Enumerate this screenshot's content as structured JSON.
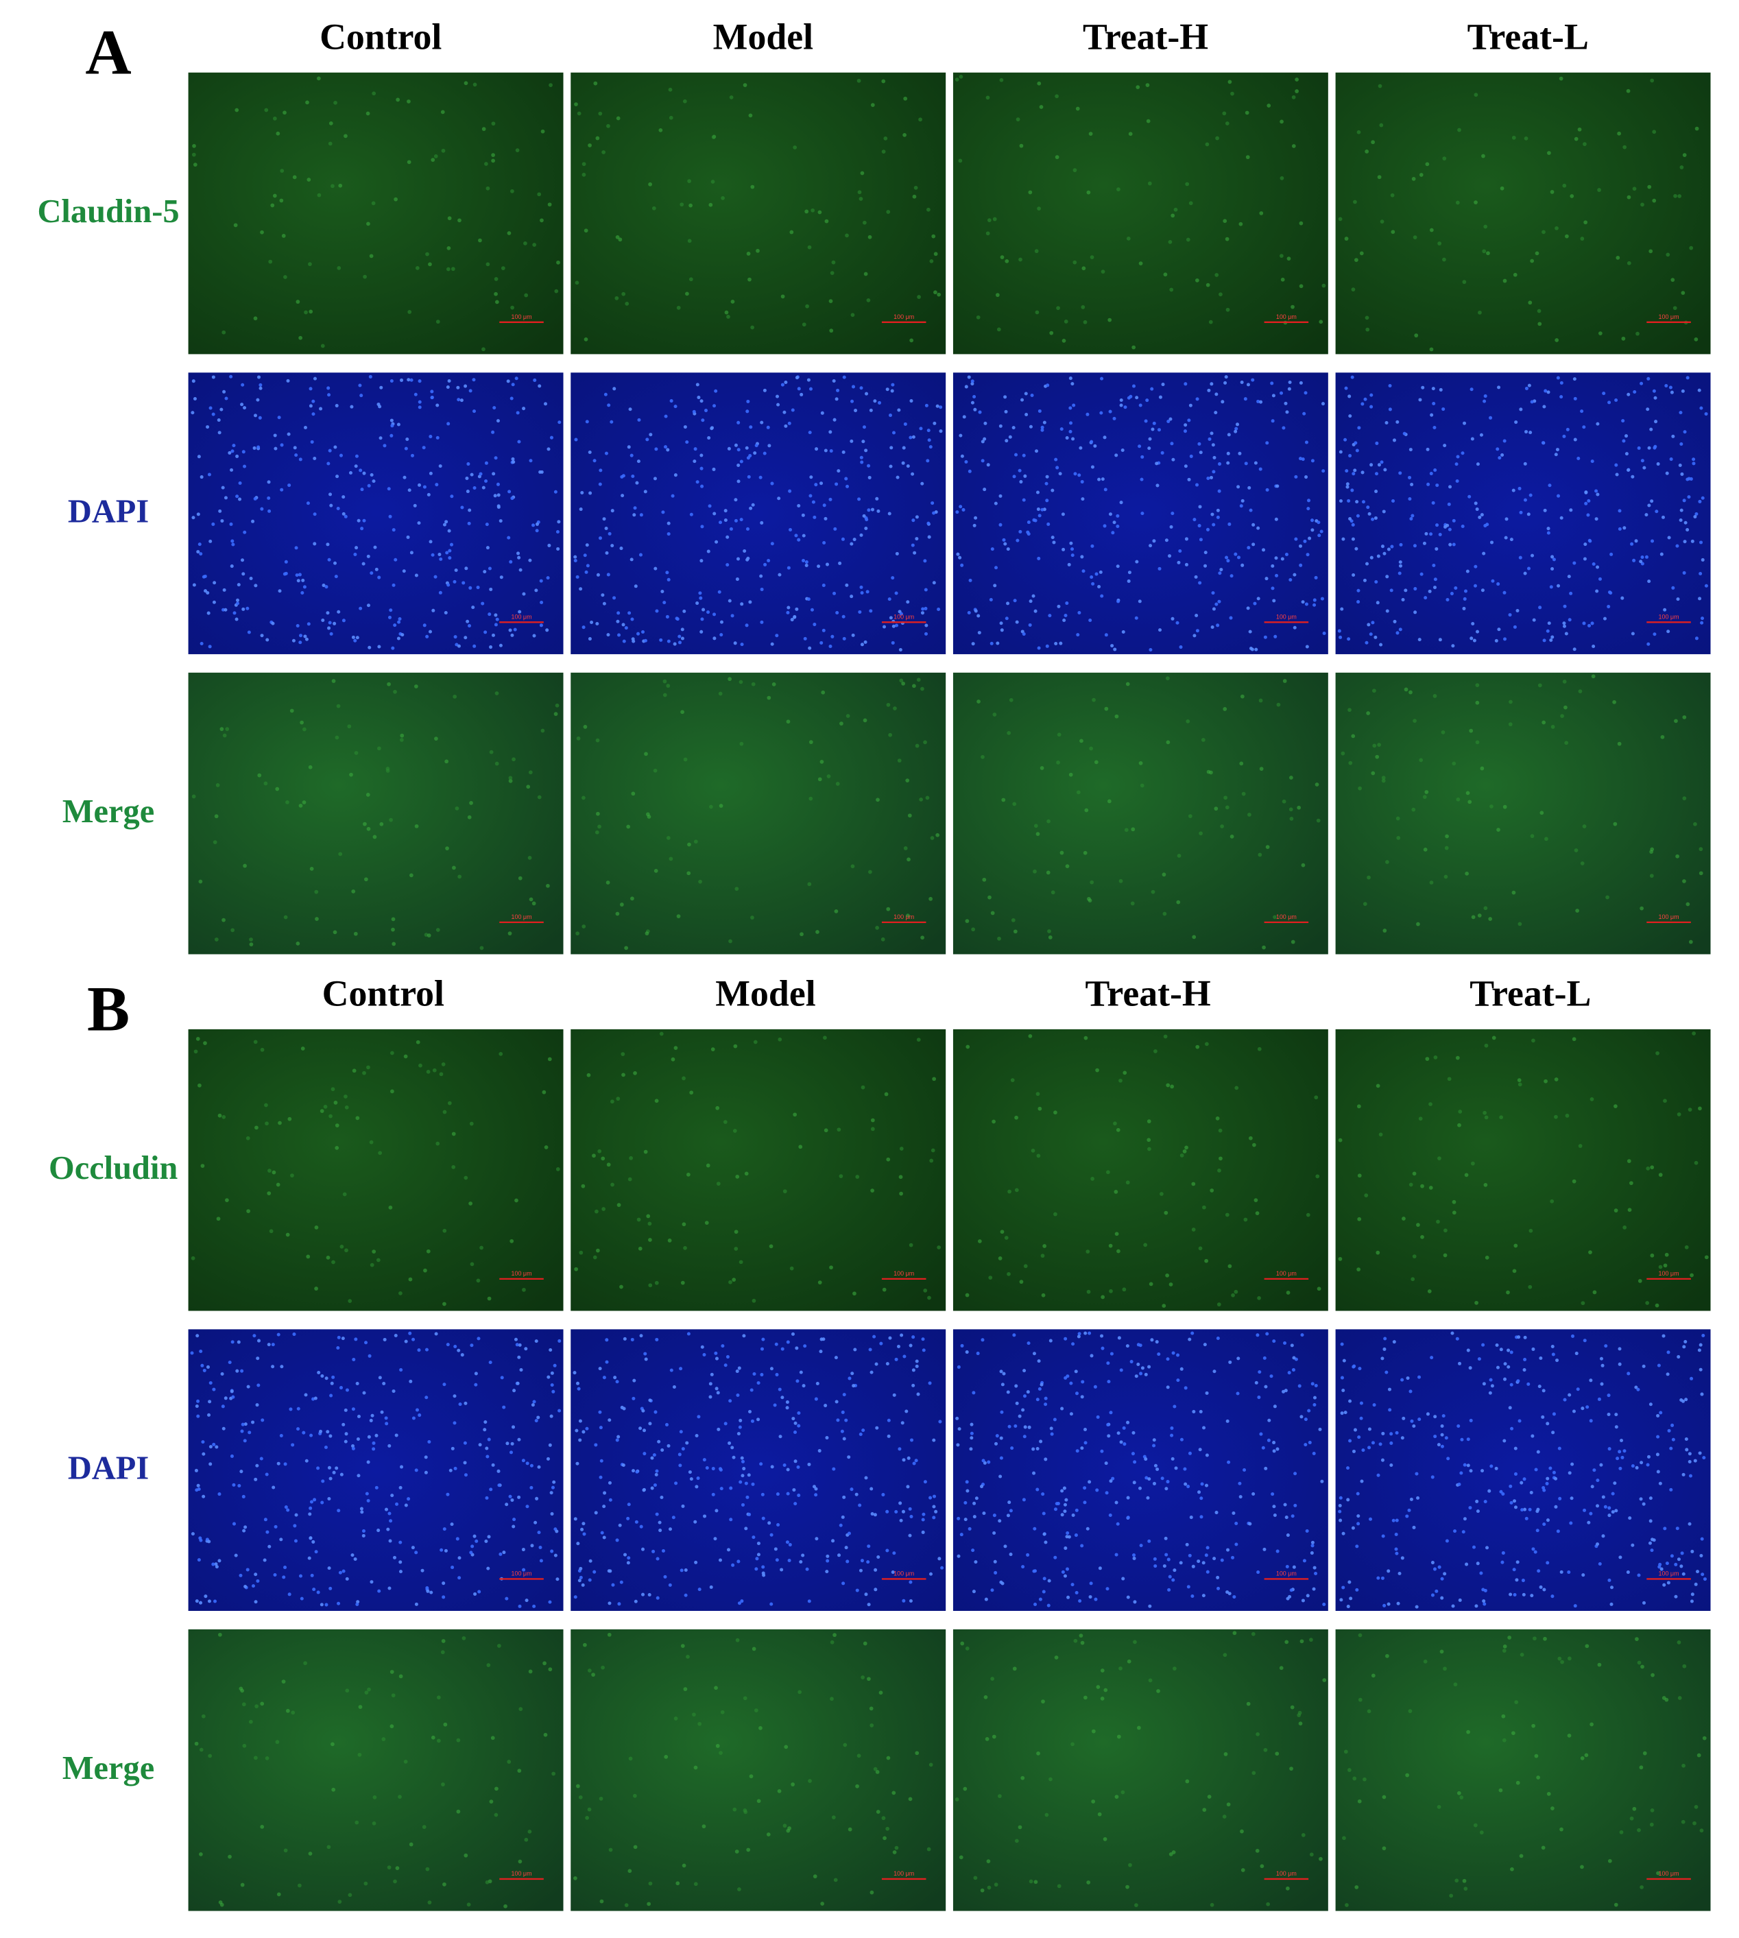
{
  "panels": [
    {
      "letter": "A",
      "columns": [
        "Control",
        "Model",
        "Treat-H",
        "Treat-L"
      ],
      "rows": [
        {
          "label": "Claudin-5",
          "color": "#1e8a3c"
        },
        {
          "label": "DAPI",
          "color": "#1c2a9c"
        },
        {
          "label": "Merge",
          "color": "#1e8a3c"
        }
      ]
    },
    {
      "letter": "B",
      "columns": [
        "Control",
        "Model",
        "Treat-H",
        "Treat-L"
      ],
      "rows": [
        {
          "label": "Occludin",
          "color": "#1e8a3c"
        },
        {
          "label": "DAPI",
          "color": "#1c2a9c"
        },
        {
          "label": "Merge",
          "color": "#1e8a3c"
        }
      ]
    }
  ],
  "scale_bar": "100 μm"
}
